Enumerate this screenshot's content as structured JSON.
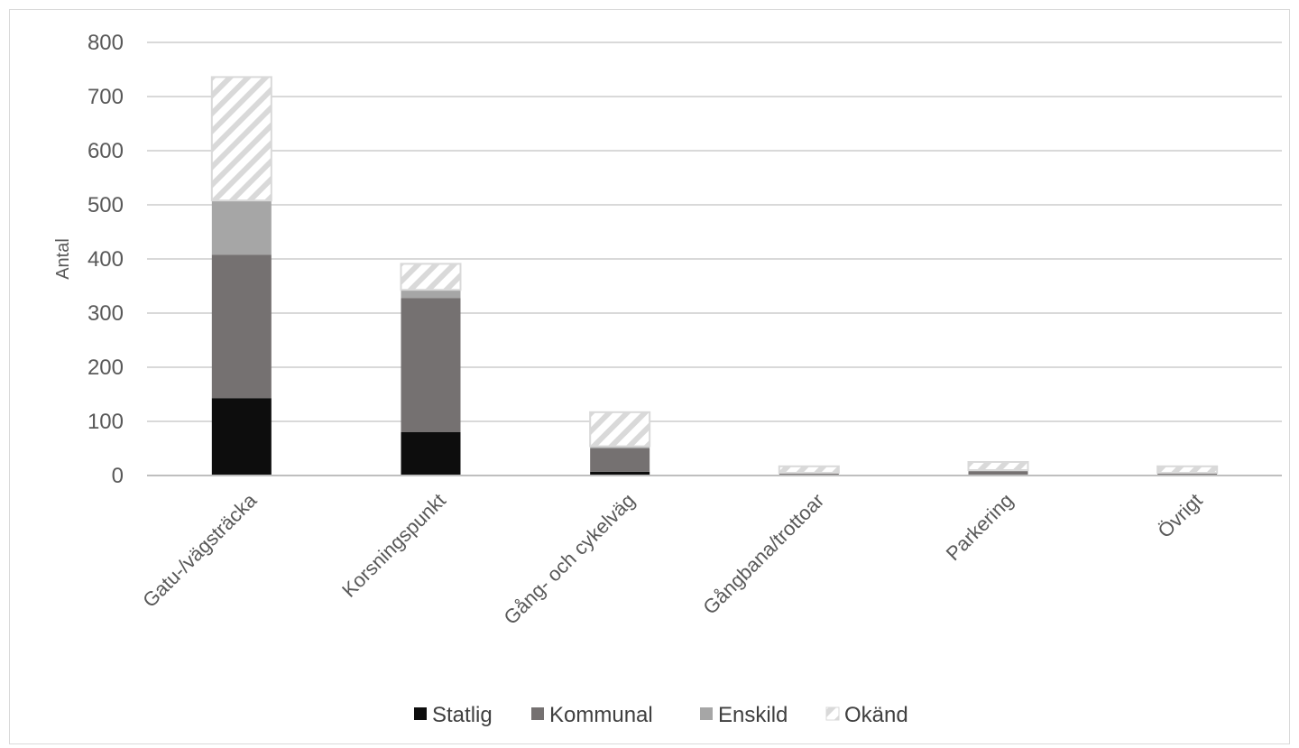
{
  "chart_data": {
    "type": "bar",
    "stacked": true,
    "categories": [
      "Gatu-/vägsträcka",
      "Korsningspunkt",
      "Gång- och cykelväg",
      "Gångbana/trottoar",
      "Parkering",
      "Övrigt"
    ],
    "series": [
      {
        "name": "Statlig",
        "values": [
          143,
          80,
          7,
          1,
          2,
          1
        ],
        "color": "#0d0d0d",
        "pattern": "solid"
      },
      {
        "name": "Kommunal",
        "values": [
          265,
          248,
          43,
          3,
          6,
          3
        ],
        "color": "#757171",
        "pattern": "solid"
      },
      {
        "name": "Enskild",
        "values": [
          100,
          15,
          4,
          1,
          2,
          1
        ],
        "color": "#a6a6a6",
        "pattern": "solid"
      },
      {
        "name": "Okänd",
        "values": [
          228,
          48,
          63,
          12,
          15,
          12
        ],
        "color": "#d9d9d9",
        "pattern": "diagonal-hatch"
      }
    ],
    "xlabel": "",
    "ylabel": "Antal",
    "ylim": [
      0,
      800
    ],
    "yticks": [
      0,
      100,
      200,
      300,
      400,
      500,
      600,
      700,
      800
    ],
    "grid": true,
    "legend_position": "bottom"
  }
}
